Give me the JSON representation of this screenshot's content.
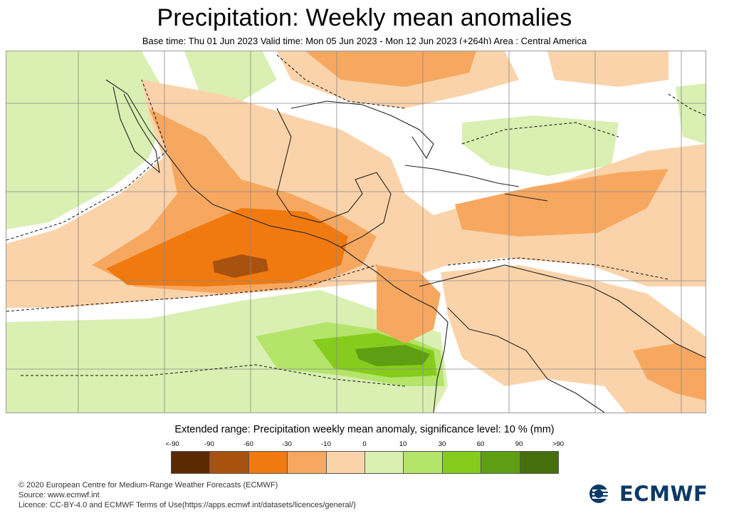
{
  "header": {
    "title": "Precipitation: Weekly mean anomalies",
    "subtitle": "Base time: Thu 01 Jun 2023 Valid time: Mon 05 Jun 2023 - Mon 12 Jun 2023 (+264h) Area : Central America"
  },
  "legend": {
    "title": "Extended range: Precipitation weekly mean anomaly, significance level: 10 % (mm)",
    "labels": [
      "<-90",
      "-90",
      "-60",
      "-30",
      "-10",
      "0",
      "10",
      "30",
      "60",
      "90",
      ">90"
    ],
    "colors": [
      "#5a2a05",
      "#a8520f",
      "#f07a10",
      "#f7a860",
      "#fbd3aa",
      "#d9f0b2",
      "#b4e46a",
      "#86cc1c",
      "#5e9e12",
      "#456e0c"
    ]
  },
  "map": {
    "region": "Central America",
    "colors": {
      "land_outline": "#222222",
      "significance_contour": "#111111",
      "gridlines": "#888888"
    }
  },
  "footer": {
    "copyright": "© 2020 European Centre for Medium-Range Weather Forecasts (ECMWF)",
    "source": "Source: www.ecmwf.int",
    "licence": "Licence: CC-BY-4.0 and ECMWF Terms of Use(https://apps.ecmwf.int/datasets/licences/general/)"
  },
  "logo": {
    "text": "ECMWF",
    "color": "#0b3a66"
  }
}
